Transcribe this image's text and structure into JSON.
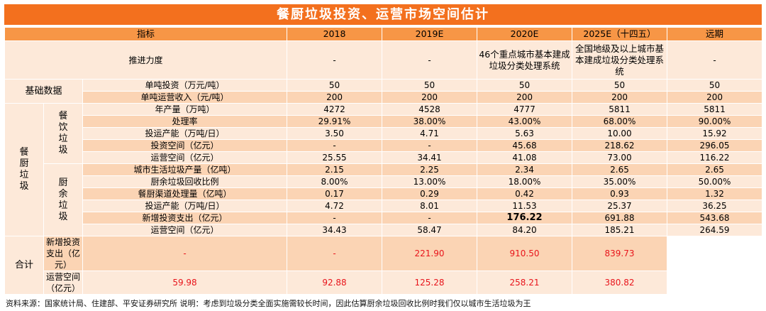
{
  "title": "餐厨垃圾投资、运营市场空间估计",
  "header": {
    "indicator": "指标",
    "years": [
      "2018",
      "2019E",
      "2020E",
      "2025E（十四五）",
      "远期"
    ]
  },
  "push": {
    "label": "推进力度",
    "values": [
      "-",
      "-",
      "46个重点城市基本建成垃圾分类处理系统",
      "全国地级及以上城市基本建成垃圾分类处理系统",
      "-"
    ]
  },
  "base": {
    "label": "基础数据",
    "rows": [
      {
        "label": "单吨投资（万元/吨）",
        "values": [
          "50",
          "50",
          "50",
          "50",
          "50"
        ]
      },
      {
        "label": "单吨运营收入（元/吨）",
        "values": [
          "200",
          "200",
          "200",
          "200",
          "200"
        ]
      }
    ]
  },
  "kitchen": {
    "label": "餐厨垃圾",
    "catering": {
      "label": "餐饮垃圾",
      "rows": [
        {
          "label": "年产量（万吨）",
          "values": [
            "4272",
            "4528",
            "4777",
            "5811",
            "5811"
          ]
        },
        {
          "label": "处理率",
          "values": [
            "29.91%",
            "38.00%",
            "43.00%",
            "68.00%",
            "90.00%"
          ]
        },
        {
          "label": "投运产能（万吨/日）",
          "values": [
            "3.50",
            "4.71",
            "5.63",
            "10.00",
            "15.92"
          ]
        },
        {
          "label": "投资空间（亿元）",
          "values": [
            "-",
            "-",
            "45.68",
            "218.62",
            "296.05"
          ]
        },
        {
          "label": "运营空间（亿元）",
          "values": [
            "25.55",
            "34.41",
            "41.08",
            "73.00",
            "116.22"
          ]
        }
      ]
    },
    "leftover": {
      "label": "厨余垃圾",
      "rows": [
        {
          "label": "城市生活垃圾产量（亿吨）",
          "values": [
            "2.15",
            "2.25",
            "2.34",
            "2.65",
            "2.65"
          ]
        },
        {
          "label": "厨余垃圾回收比例",
          "values": [
            "8.00%",
            "13.00%",
            "18.00%",
            "35.00%",
            "50.00%"
          ]
        },
        {
          "label": "餐厨渠道处理量（亿吨）",
          "values": [
            "0.17",
            "0.29",
            "0.42",
            "0.93",
            "1.32"
          ]
        },
        {
          "label": "投运产能（万吨/日）",
          "values": [
            "4.72",
            "8.01",
            "11.53",
            "25.37",
            "36.25"
          ]
        },
        {
          "label": "新增投资支出（亿元）",
          "values": [
            "-",
            "-",
            "176.22",
            "691.88",
            "543.68"
          ]
        },
        {
          "label": "运营空间（亿元）",
          "values": [
            "34.43",
            "58.47",
            "84.20",
            "185.21",
            "264.59"
          ]
        }
      ]
    },
    "total": {
      "label": "合计",
      "rows": [
        {
          "label": "新增投资支出（亿元）",
          "values": [
            "-",
            "-",
            "221.90",
            "910.50",
            "839.73"
          ]
        },
        {
          "label": "运营空间（亿元）",
          "values": [
            "59.98",
            "92.88",
            "125.28",
            "258.21",
            "380.82"
          ]
        }
      ]
    }
  },
  "source": "资料来源：国家统计局、住建部、平安证券研究所  说明：考虑到垃圾分类全面实施需较长时间，因此估算厨余垃圾回收比例时我们仅以城市生活垃圾为王",
  "colors": {
    "title_bg": "#f3701e",
    "header_bg": "#f79646",
    "row_light": "#fde9d9",
    "row_dark": "#fbd4b4",
    "highlight": "#e8141b"
  }
}
